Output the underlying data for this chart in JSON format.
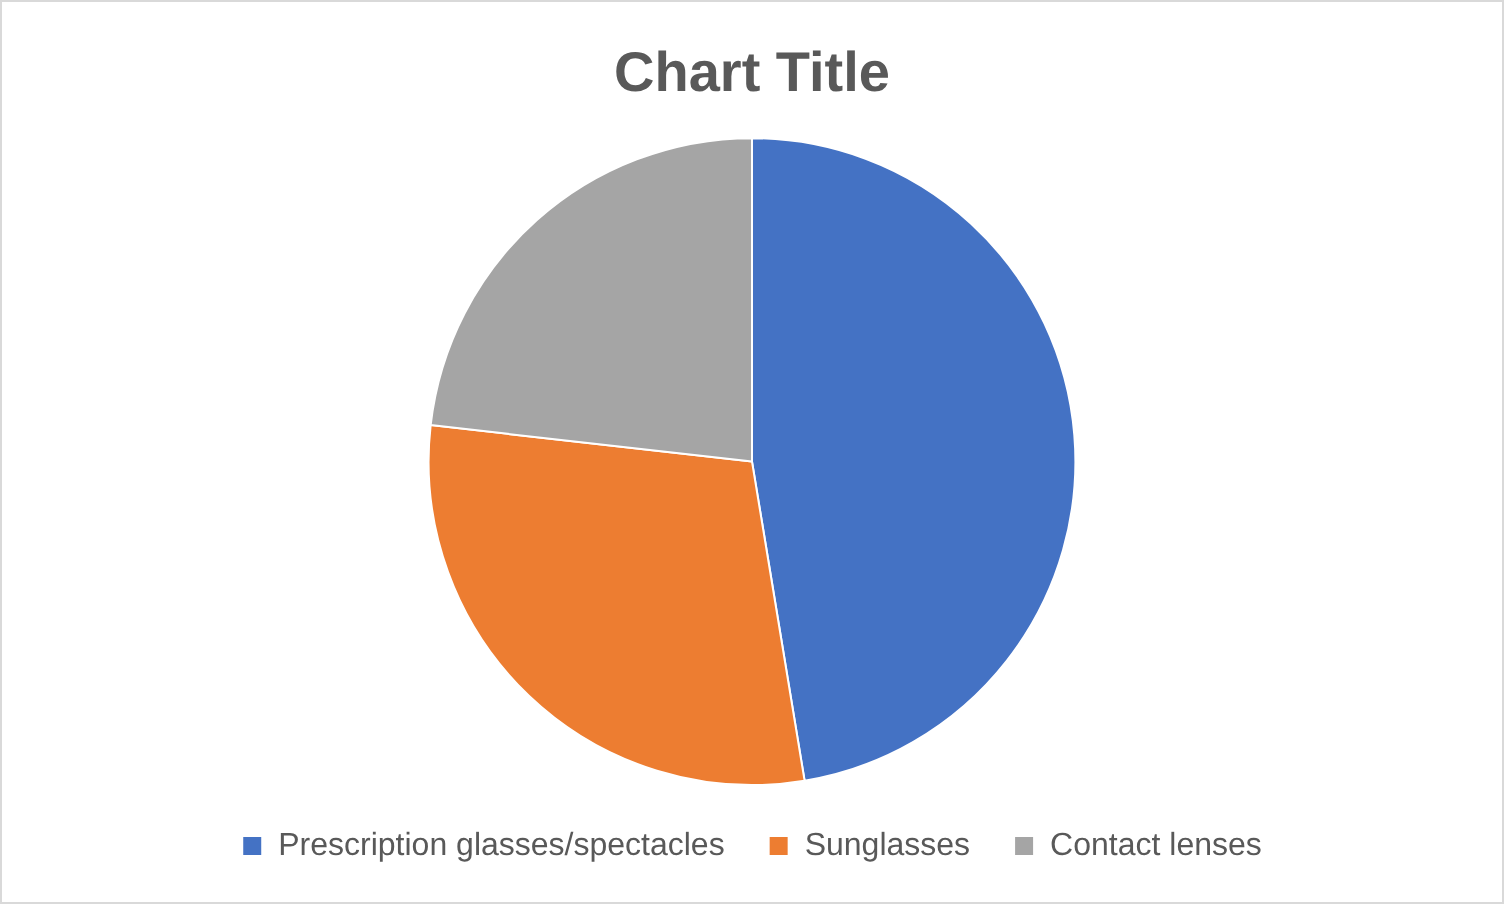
{
  "chart_data": {
    "type": "pie",
    "title": "Chart Title",
    "categories": [
      "Prescription glasses/spectacles",
      "Sunglasses",
      "Contact lenses"
    ],
    "values": [
      47.4,
      29.4,
      23.2
    ],
    "colors": [
      "#4472c4",
      "#ed7d31",
      "#a5a5a5"
    ],
    "legend": "bottom"
  }
}
